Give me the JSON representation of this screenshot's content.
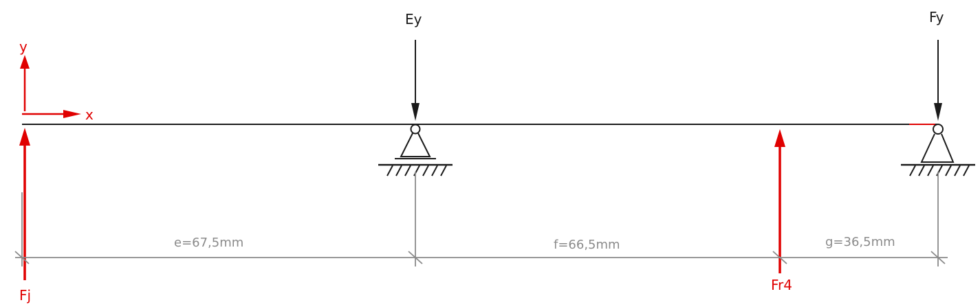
{
  "axes": {
    "x_label": "x",
    "y_label": "y"
  },
  "forces": {
    "ey": "Ey",
    "fy": "Fy",
    "fj": "Fj",
    "fr4": "Fr4"
  },
  "dimensions": {
    "e": "e=67,5mm",
    "f": "f=66,5mm",
    "g": "g=36,5mm"
  },
  "colors": {
    "beam": "#1a1a1a",
    "reaction_force": "#1a1a1a",
    "applied_force": "#e00000",
    "dimension": "#8a8a8a"
  }
}
